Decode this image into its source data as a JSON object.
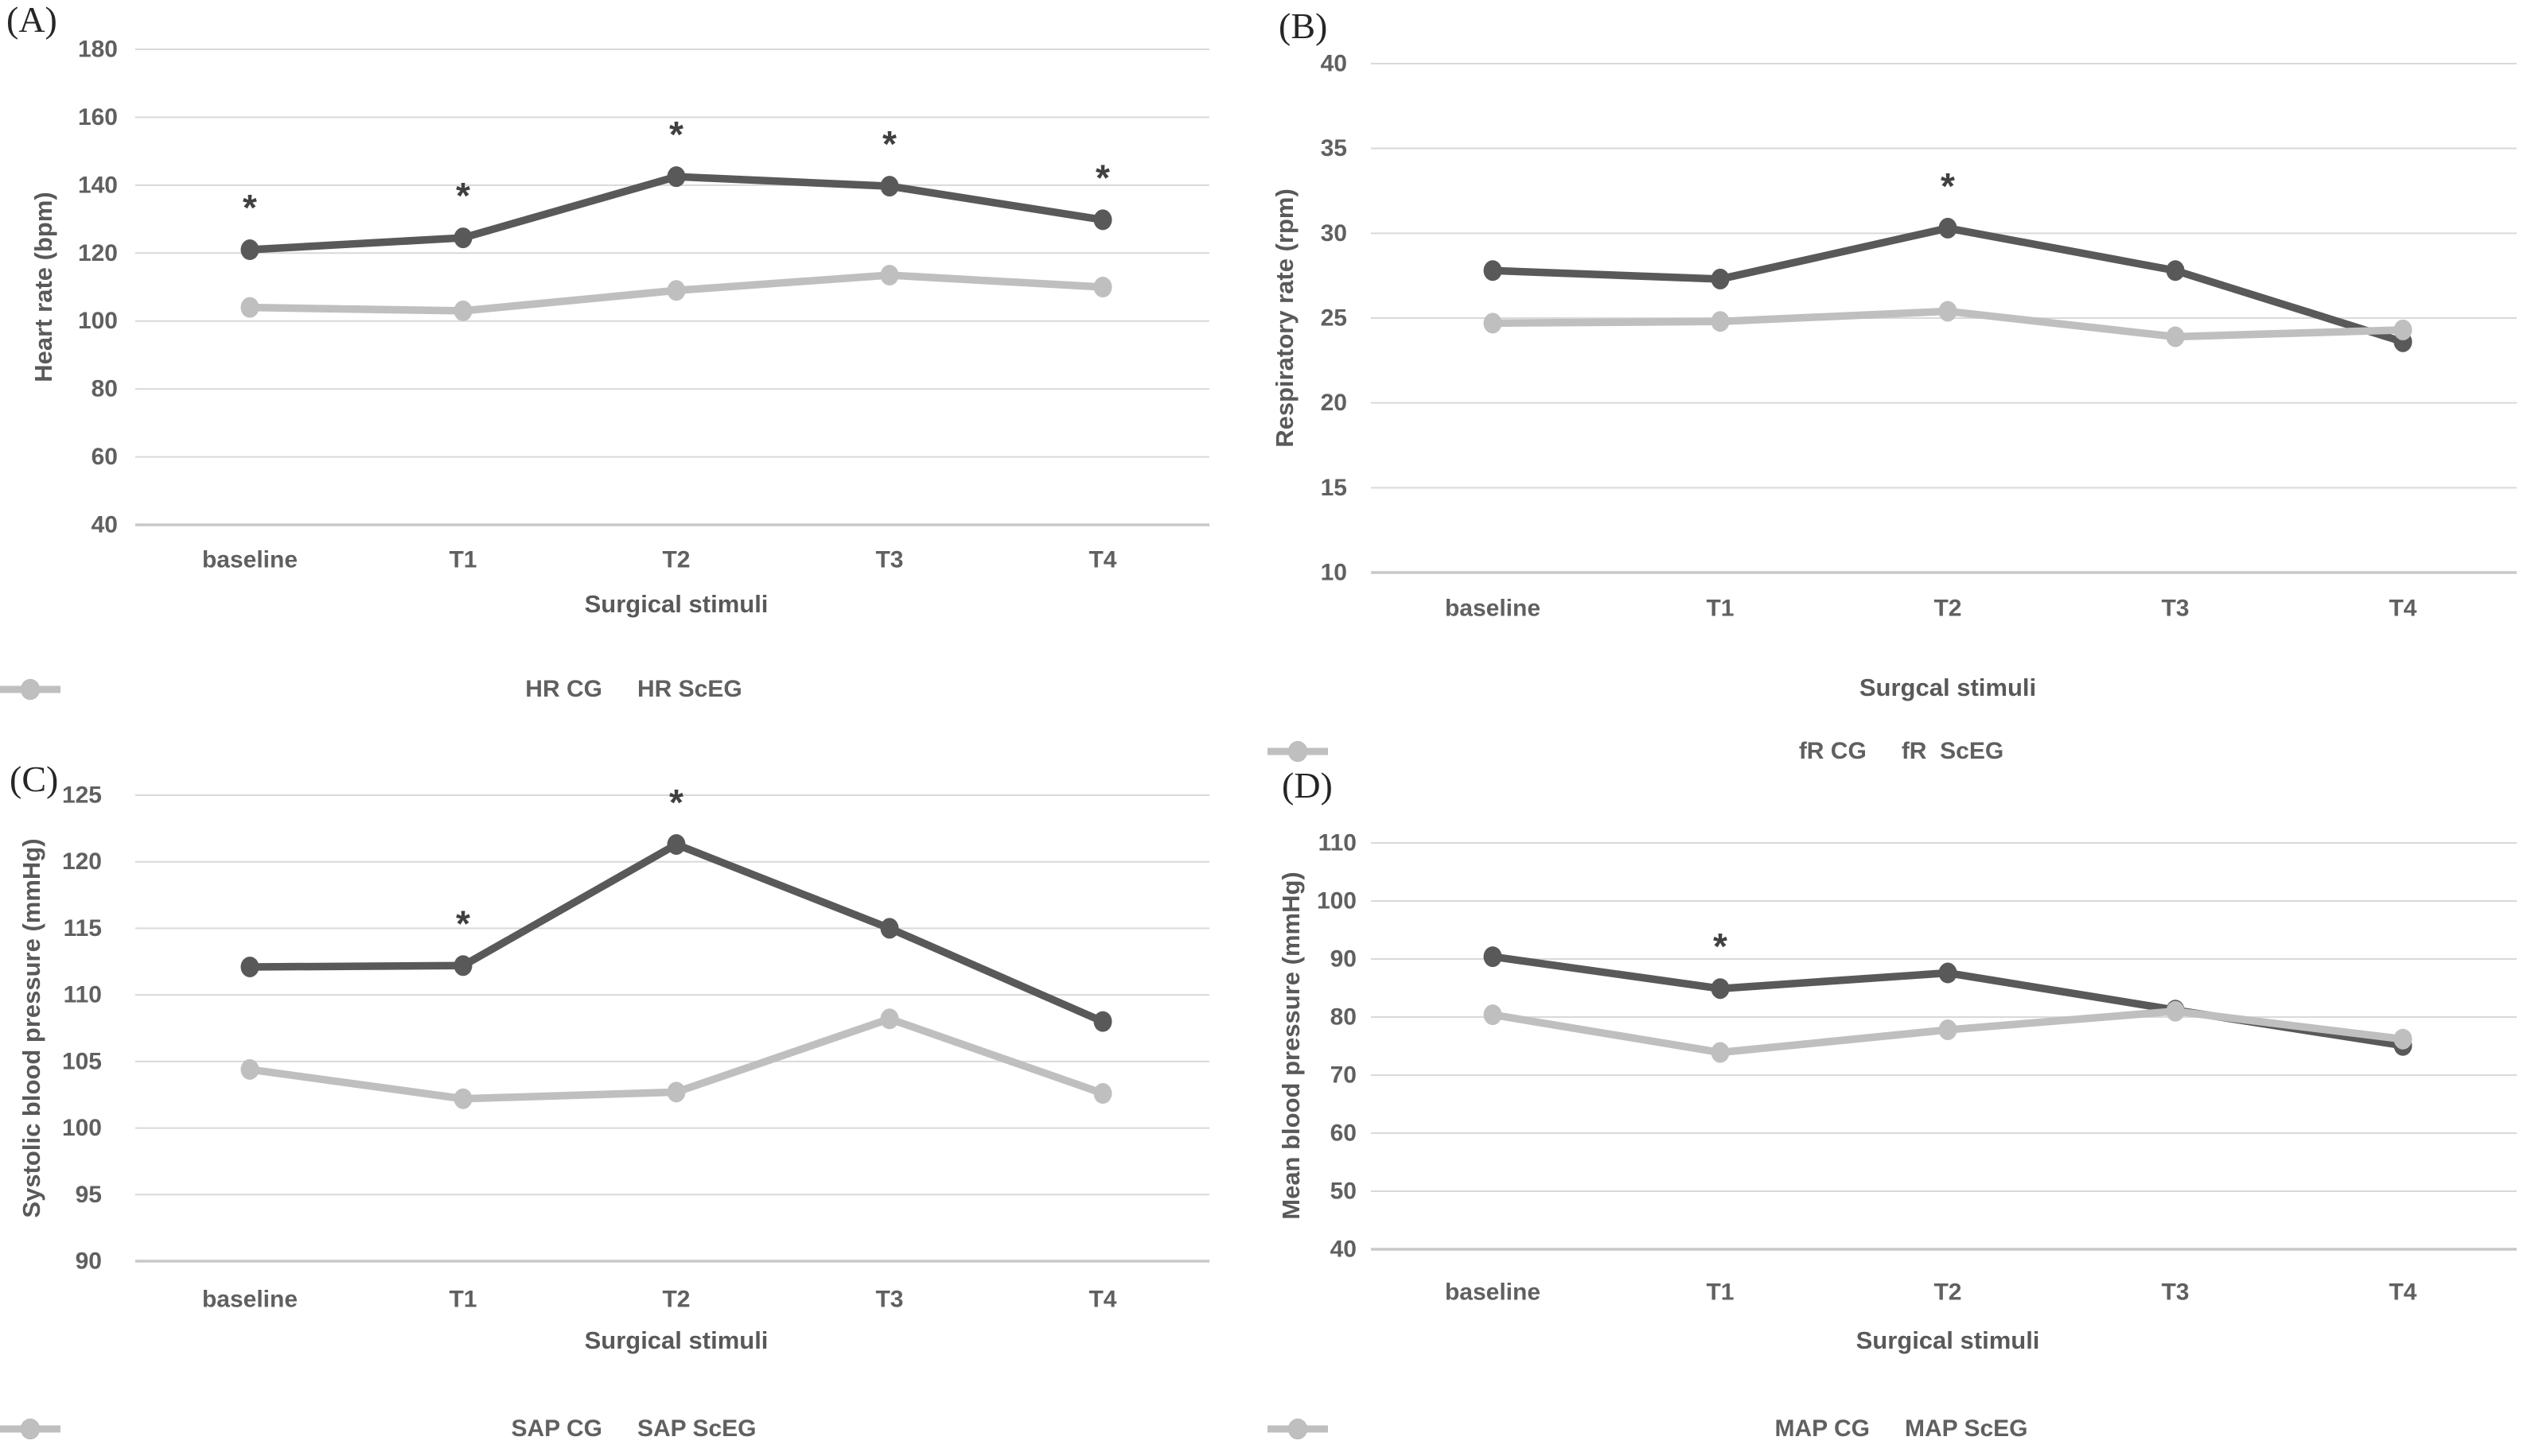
{
  "figure": {
    "background": "#ffffff",
    "significance_marker": "*"
  },
  "colors": {
    "cg_series": "#595959",
    "sceg_series": "#bfbfbf",
    "gridline": "#d9d9d9",
    "axis_line": "#c8c8c8",
    "tick_text": "#606060",
    "axis_title_text": "#595959",
    "asterisk": "#404040",
    "panel_letter": "#262626"
  },
  "chart_data": [
    {
      "type": "line",
      "panel_label": "(A)",
      "title": "",
      "ylabel": "Heart rate (bpm)",
      "xlabel": "Surgical stimuli",
      "categories": [
        "baseline",
        "T1",
        "T2",
        "T3",
        "T4"
      ],
      "ylim": [
        40,
        180
      ],
      "ytick_step": 20,
      "grid": true,
      "legend_position": "bottom",
      "series": [
        {
          "name": "HR CG",
          "color_key": "cg_series",
          "values": [
            121,
            124.5,
            142.5,
            139.7,
            129.8
          ],
          "significant_points": [
            "baseline",
            "T1",
            "T2",
            "T3",
            "T4"
          ]
        },
        {
          "name": "HR ScEG",
          "color_key": "sceg_series",
          "values": [
            104,
            103,
            109,
            113.5,
            110
          ],
          "significant_points": []
        }
      ]
    },
    {
      "type": "line",
      "panel_label": "(B)",
      "title": "",
      "ylabel": "Respiratory rate (rpm)",
      "xlabel": "Surgcal stimuli",
      "categories": [
        "baseline",
        "T1",
        "T2",
        "T3",
        "T4"
      ],
      "ylim": [
        10,
        40
      ],
      "ytick_step": 5,
      "grid": true,
      "legend_position": "bottom",
      "series": [
        {
          "name": "fR CG",
          "color_key": "cg_series",
          "values": [
            27.8,
            27.3,
            30.3,
            27.8,
            23.6
          ],
          "significant_points": [
            "T2"
          ]
        },
        {
          "name": "fR  ScEG",
          "color_key": "sceg_series",
          "values": [
            24.7,
            24.8,
            25.4,
            23.9,
            24.3
          ],
          "significant_points": []
        }
      ]
    },
    {
      "type": "line",
      "panel_label": "(C)",
      "title": "",
      "ylabel": "Systolic blood pressure (mmHg)",
      "xlabel": "Surgical stimuli",
      "categories": [
        "baseline",
        "T1",
        "T2",
        "T3",
        "T4"
      ],
      "ylim": [
        90,
        125
      ],
      "ytick_step": 5,
      "grid": true,
      "legend_position": "bottom",
      "series": [
        {
          "name": "SAP CG",
          "color_key": "cg_series",
          "values": [
            112.1,
            112.2,
            121.3,
            115,
            108
          ],
          "significant_points": [
            "T1",
            "T2"
          ]
        },
        {
          "name": "SAP ScEG",
          "color_key": "sceg_series",
          "values": [
            104.4,
            102.2,
            102.7,
            108.2,
            102.6
          ],
          "significant_points": []
        }
      ]
    },
    {
      "type": "line",
      "panel_label": "(D)",
      "title": "",
      "ylabel": "Mean blood pressure (mmHg)",
      "xlabel": "Surgical stimuli",
      "categories": [
        "baseline",
        "T1",
        "T2",
        "T3",
        "T4"
      ],
      "ylim": [
        40,
        110
      ],
      "ytick_step": 10,
      "grid": true,
      "legend_position": "bottom",
      "series": [
        {
          "name": "MAP CG",
          "color_key": "cg_series",
          "values": [
            90.4,
            84.9,
            87.6,
            81.2,
            75.1
          ],
          "significant_points": [
            "T1"
          ]
        },
        {
          "name": "MAP ScEG",
          "color_key": "sceg_series",
          "values": [
            80.4,
            73.9,
            77.8,
            81,
            76.2
          ],
          "significant_points": []
        }
      ]
    }
  ]
}
